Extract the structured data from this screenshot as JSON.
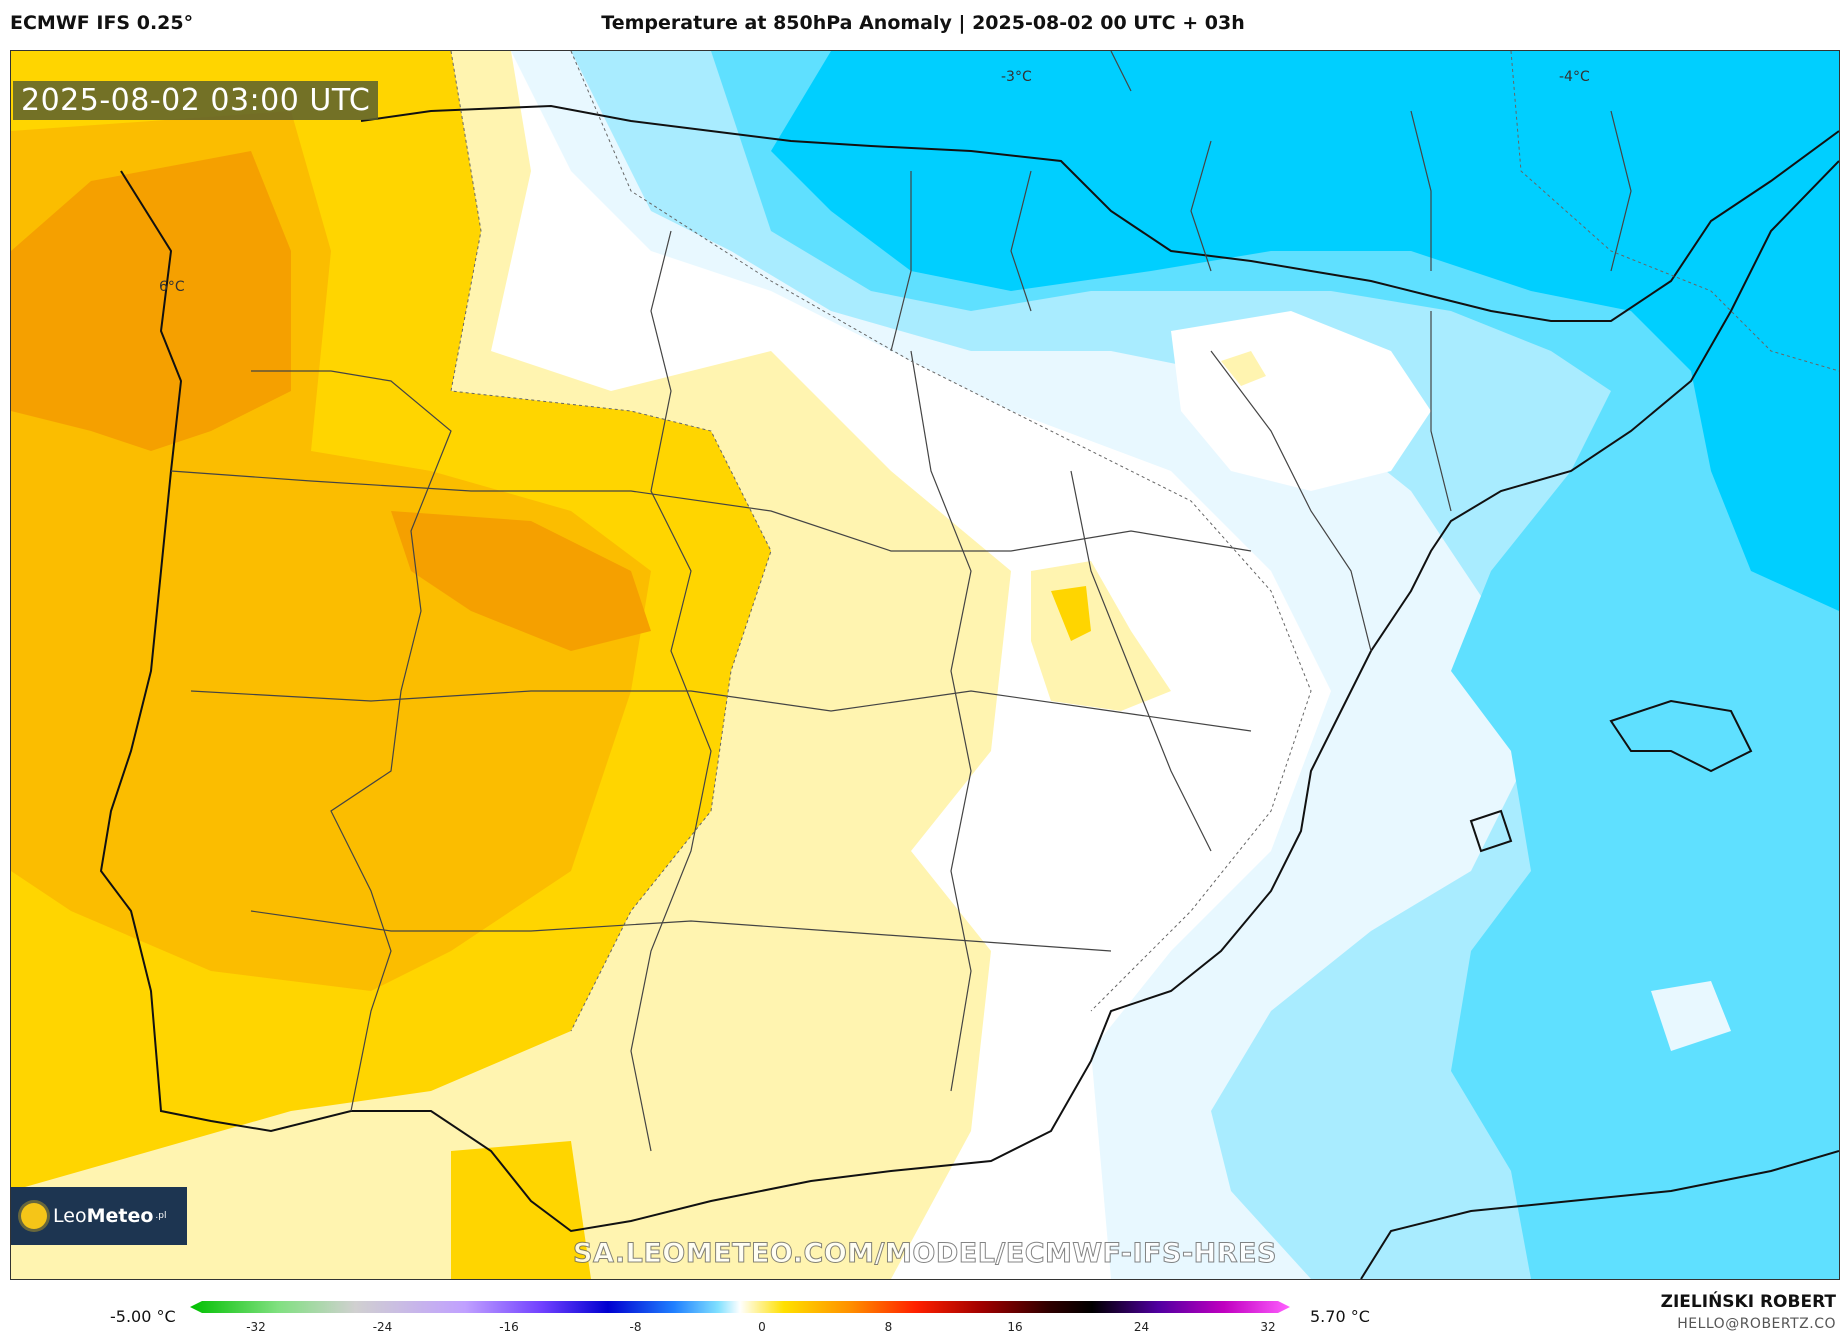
{
  "header": {
    "model": "ECMWF IFS 0.25°",
    "title": "Temperature at 850hPa Anomaly | 2025-08-02 00 UTC + 03h"
  },
  "map": {
    "timestamp": "2025-08-02 03:00 UTC",
    "watermark": "SA.LEOMETEO.COM/MODEL/ECMWF-IFS-HRES",
    "isolines": [
      {
        "label": "-3°C"
      },
      {
        "label": "-4°C"
      },
      {
        "label": "6°C"
      }
    ],
    "logo": {
      "brand_a": "Leo",
      "brand_b": "Meteo",
      "suffix": ".pl"
    },
    "colors": {
      "deep_orange": "#f5a000",
      "orange": "#fbbd00",
      "yellow": "#ffd500",
      "light_yellow": "#fff4b0",
      "white": "#ffffff",
      "very_light_blue": "#e8f8ff",
      "light_blue": "#a9ecff",
      "blue": "#5fe0ff",
      "cyan": "#00cfff"
    }
  },
  "legend": {
    "min_label": "-5.00 °C",
    "max_label": "5.70 °C",
    "ticks": [
      "-32",
      "-24",
      "-16",
      "-8",
      "0",
      "8",
      "16",
      "24",
      "32"
    ]
  },
  "credits": {
    "author": "ZIELIŃSKI ROBERT",
    "email": "HELLO@ROBERTZ.CO"
  }
}
